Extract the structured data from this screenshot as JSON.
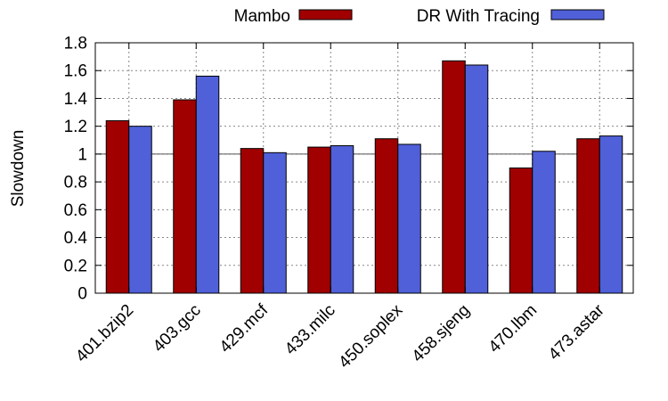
{
  "chart_data": {
    "type": "bar",
    "title": "",
    "xlabel": "",
    "ylabel": "Slowdown",
    "ylim": [
      0,
      1.8
    ],
    "yticks": [
      "0",
      "0.2",
      "0.4",
      "0.6",
      "0.8",
      "1",
      "1.2",
      "1.4",
      "1.6",
      "1.8"
    ],
    "grid": true,
    "reference_line": 1,
    "legend_position": "top",
    "categories": [
      "401.bzip2",
      "403.gcc",
      "429.mcf",
      "433.milc",
      "450.soplex",
      "458.sjeng",
      "470.lbm",
      "473.astar"
    ],
    "series": [
      {
        "name": "Mambo",
        "color": "#a00000",
        "values": [
          1.24,
          1.39,
          1.04,
          1.05,
          1.11,
          1.67,
          0.9,
          1.11
        ]
      },
      {
        "name": "DR With Tracing",
        "color": "#5060d8",
        "values": [
          1.2,
          1.56,
          1.01,
          1.06,
          1.07,
          1.64,
          1.02,
          1.13
        ]
      }
    ]
  }
}
